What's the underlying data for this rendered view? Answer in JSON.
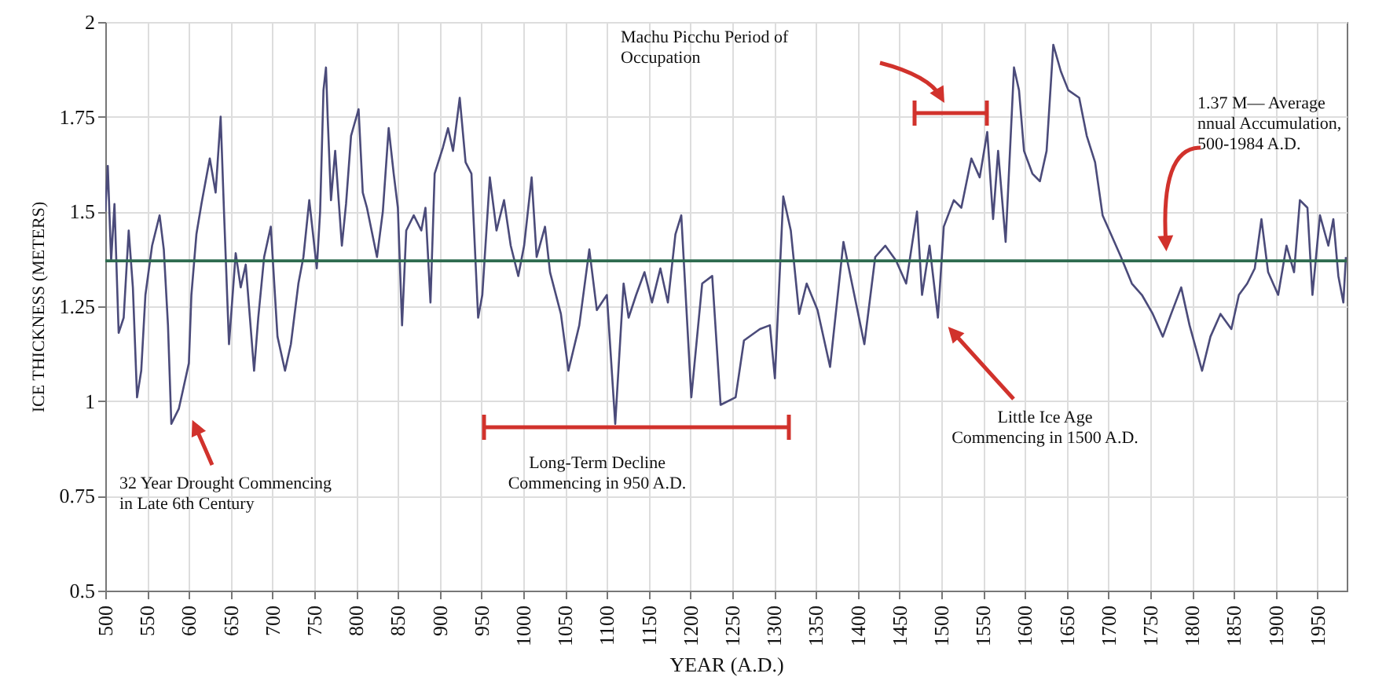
{
  "chart_data": {
    "type": "line",
    "xlabel": "YEAR (A.D.)",
    "ylabel": "ICE THICKNESS (METERS)",
    "xlim": [
      500,
      1985
    ],
    "xticks": [
      500,
      550,
      600,
      650,
      700,
      750,
      800,
      850,
      900,
      950,
      1000,
      1050,
      1100,
      1150,
      1200,
      1250,
      1300,
      1350,
      1400,
      1450,
      1500,
      1550,
      1600,
      1650,
      1700,
      1750,
      1800,
      1850,
      1900,
      1950
    ],
    "ylim": [
      0.5,
      2
    ],
    "yticks": [
      0.5,
      0.75,
      1,
      1.25,
      1.5,
      1.75,
      2
    ],
    "grid": true,
    "x": [
      500,
      503,
      507,
      511,
      516,
      522,
      528,
      533,
      538,
      543,
      548,
      556,
      565,
      570,
      575,
      579,
      588,
      593,
      600,
      603,
      609,
      615,
      625,
      632,
      638,
      642,
      648,
      656,
      662,
      668,
      673,
      678,
      683,
      690,
      698,
      706,
      715,
      722,
      731,
      737,
      744,
      748,
      753,
      757,
      761,
      764,
      766,
      770,
      775,
      783,
      788,
      794,
      803,
      808,
      813,
      825,
      832,
      839,
      845,
      850,
      855,
      860,
      869,
      878,
      883,
      889,
      894,
      904,
      910,
      916,
      924,
      931,
      938,
      946,
      951,
      960,
      968,
      977,
      985,
      994,
      1001,
      1010,
      1016,
      1026,
      1032,
      1045,
      1054,
      1067,
      1079,
      1088,
      1100,
      1110,
      1120,
      1126,
      1135,
      1145,
      1154,
      1164,
      1173,
      1182,
      1189,
      1201,
      1214,
      1226,
      1236,
      1254,
      1264,
      1283,
      1295,
      1301,
      1311,
      1320,
      1330,
      1339,
      1352,
      1367,
      1383,
      1396,
      1408,
      1421,
      1433,
      1446,
      1458,
      1471,
      1477,
      1486,
      1496,
      1503,
      1515,
      1524,
      1536,
      1546,
      1555,
      1562,
      1568,
      1577,
      1587,
      1593,
      1599,
      1609,
      1618,
      1626,
      1634,
      1643,
      1652,
      1665,
      1674,
      1684,
      1693,
      1703,
      1715,
      1728,
      1740,
      1753,
      1765,
      1775,
      1787,
      1797,
      1812,
      1822,
      1834,
      1847,
      1856,
      1866,
      1875,
      1883,
      1891,
      1903,
      1913,
      1922,
      1929,
      1938,
      1944,
      1953,
      1963,
      1969,
      1975,
      1981,
      1984
    ],
    "series": [
      {
        "color": "#4b4b7a",
        "values": [
          1.5,
          1.62,
          1.37,
          1.52,
          1.18,
          1.22,
          1.45,
          1.3,
          1.01,
          1.08,
          1.28,
          1.41,
          1.49,
          1.4,
          1.2,
          0.94,
          0.98,
          1.03,
          1.1,
          1.28,
          1.44,
          1.52,
          1.64,
          1.55,
          1.75,
          1.5,
          1.15,
          1.39,
          1.3,
          1.36,
          1.22,
          1.08,
          1.22,
          1.38,
          1.46,
          1.17,
          1.08,
          1.15,
          1.31,
          1.38,
          1.53,
          1.45,
          1.35,
          1.5,
          1.82,
          1.88,
          1.75,
          1.53,
          1.66,
          1.41,
          1.52,
          1.7,
          1.77,
          1.55,
          1.51,
          1.38,
          1.5,
          1.72,
          1.6,
          1.51,
          1.2,
          1.45,
          1.49,
          1.45,
          1.51,
          1.26,
          1.6,
          1.67,
          1.72,
          1.66,
          1.8,
          1.63,
          1.6,
          1.22,
          1.28,
          1.59,
          1.45,
          1.53,
          1.41,
          1.33,
          1.41,
          1.59,
          1.38,
          1.46,
          1.34,
          1.23,
          1.08,
          1.2,
          1.4,
          1.24,
          1.28,
          0.94,
          1.31,
          1.22,
          1.28,
          1.34,
          1.26,
          1.35,
          1.26,
          1.44,
          1.49,
          1.01,
          1.31,
          1.33,
          0.99,
          1.01,
          1.16,
          1.19,
          1.2,
          1.06,
          1.54,
          1.45,
          1.23,
          1.31,
          1.24,
          1.09,
          1.42,
          1.28,
          1.15,
          1.38,
          1.41,
          1.37,
          1.31,
          1.5,
          1.28,
          1.41,
          1.22,
          1.46,
          1.53,
          1.51,
          1.64,
          1.59,
          1.71,
          1.48,
          1.66,
          1.42,
          1.88,
          1.82,
          1.66,
          1.6,
          1.58,
          1.66,
          1.94,
          1.87,
          1.82,
          1.8,
          1.7,
          1.63,
          1.49,
          1.44,
          1.38,
          1.31,
          1.28,
          1.23,
          1.17,
          1.23,
          1.3,
          1.2,
          1.08,
          1.17,
          1.23,
          1.19,
          1.28,
          1.31,
          1.35,
          1.48,
          1.34,
          1.28,
          1.41,
          1.34,
          1.53,
          1.51,
          1.28,
          1.49,
          1.41,
          1.48,
          1.33,
          1.26,
          1.38
        ]
      }
    ],
    "ref_lines": [
      {
        "axis": "y",
        "value": 1.37,
        "color": "#2e6b4f"
      }
    ],
    "annotations": [
      "Machu Picchu Period of\nOccupation",
      "32 Year Drought Commencing\nin Late 6th Century",
      "Long-Term Decline\nCommencing in 950 A.D.",
      "Little Ice Age\nCommencing in 1500 A.D.",
      "1.37 M— Average\n nnual Accumulation,\n500-1984 A.D."
    ]
  }
}
